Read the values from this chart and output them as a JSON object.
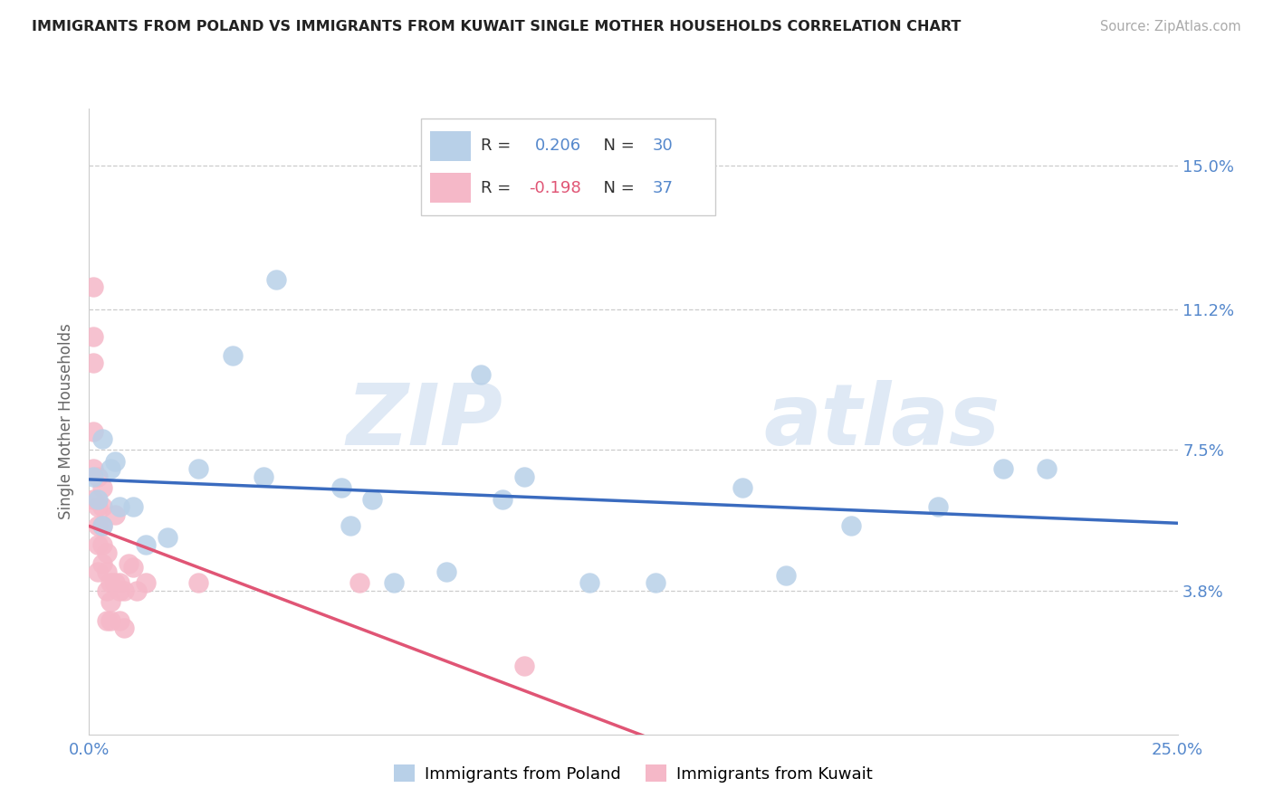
{
  "title": "IMMIGRANTS FROM POLAND VS IMMIGRANTS FROM KUWAIT SINGLE MOTHER HOUSEHOLDS CORRELATION CHART",
  "source": "Source: ZipAtlas.com",
  "ylabel": "Single Mother Households",
  "xtick_labels": [
    "0.0%",
    "25.0%"
  ],
  "xtick_values": [
    0.0,
    0.25
  ],
  "ytick_labels": [
    "3.8%",
    "7.5%",
    "11.2%",
    "15.0%"
  ],
  "ytick_values": [
    0.038,
    0.075,
    0.112,
    0.15
  ],
  "xlim": [
    0.0,
    0.25
  ],
  "ylim": [
    0.0,
    0.165
  ],
  "poland_color": "#b8d0e8",
  "kuwait_color": "#f5b8c8",
  "poland_line_color": "#3a6bbf",
  "kuwait_line_color": "#e05575",
  "poland_r": 0.206,
  "poland_n": 30,
  "kuwait_r": -0.198,
  "kuwait_n": 37,
  "watermark_zip": "ZIP",
  "watermark_atlas": "atlas",
  "legend_r_color": "#e05575",
  "legend_n_color": "#3a6bbf",
  "poland_scatter_x": [
    0.001,
    0.002,
    0.003,
    0.003,
    0.005,
    0.006,
    0.007,
    0.01,
    0.013,
    0.018,
    0.025,
    0.033,
    0.04,
    0.043,
    0.058,
    0.06,
    0.065,
    0.07,
    0.082,
    0.09,
    0.095,
    0.1,
    0.115,
    0.13,
    0.15,
    0.16,
    0.175,
    0.195,
    0.21,
    0.22
  ],
  "poland_scatter_y": [
    0.068,
    0.062,
    0.078,
    0.055,
    0.07,
    0.072,
    0.06,
    0.06,
    0.05,
    0.052,
    0.07,
    0.1,
    0.068,
    0.12,
    0.065,
    0.055,
    0.062,
    0.04,
    0.043,
    0.095,
    0.062,
    0.068,
    0.04,
    0.04,
    0.065,
    0.042,
    0.055,
    0.06,
    0.07,
    0.07
  ],
  "kuwait_scatter_x": [
    0.001,
    0.001,
    0.001,
    0.001,
    0.001,
    0.001,
    0.002,
    0.002,
    0.002,
    0.002,
    0.002,
    0.003,
    0.003,
    0.003,
    0.003,
    0.003,
    0.004,
    0.004,
    0.004,
    0.004,
    0.005,
    0.005,
    0.005,
    0.006,
    0.006,
    0.007,
    0.007,
    0.007,
    0.008,
    0.008,
    0.009,
    0.01,
    0.011,
    0.013,
    0.025,
    0.062,
    0.1
  ],
  "kuwait_scatter_y": [
    0.118,
    0.105,
    0.098,
    0.08,
    0.07,
    0.062,
    0.068,
    0.06,
    0.055,
    0.05,
    0.043,
    0.065,
    0.06,
    0.055,
    0.05,
    0.045,
    0.048,
    0.043,
    0.038,
    0.03,
    0.04,
    0.035,
    0.03,
    0.058,
    0.04,
    0.04,
    0.038,
    0.03,
    0.038,
    0.028,
    0.045,
    0.044,
    0.038,
    0.04,
    0.04,
    0.04,
    0.018
  ]
}
